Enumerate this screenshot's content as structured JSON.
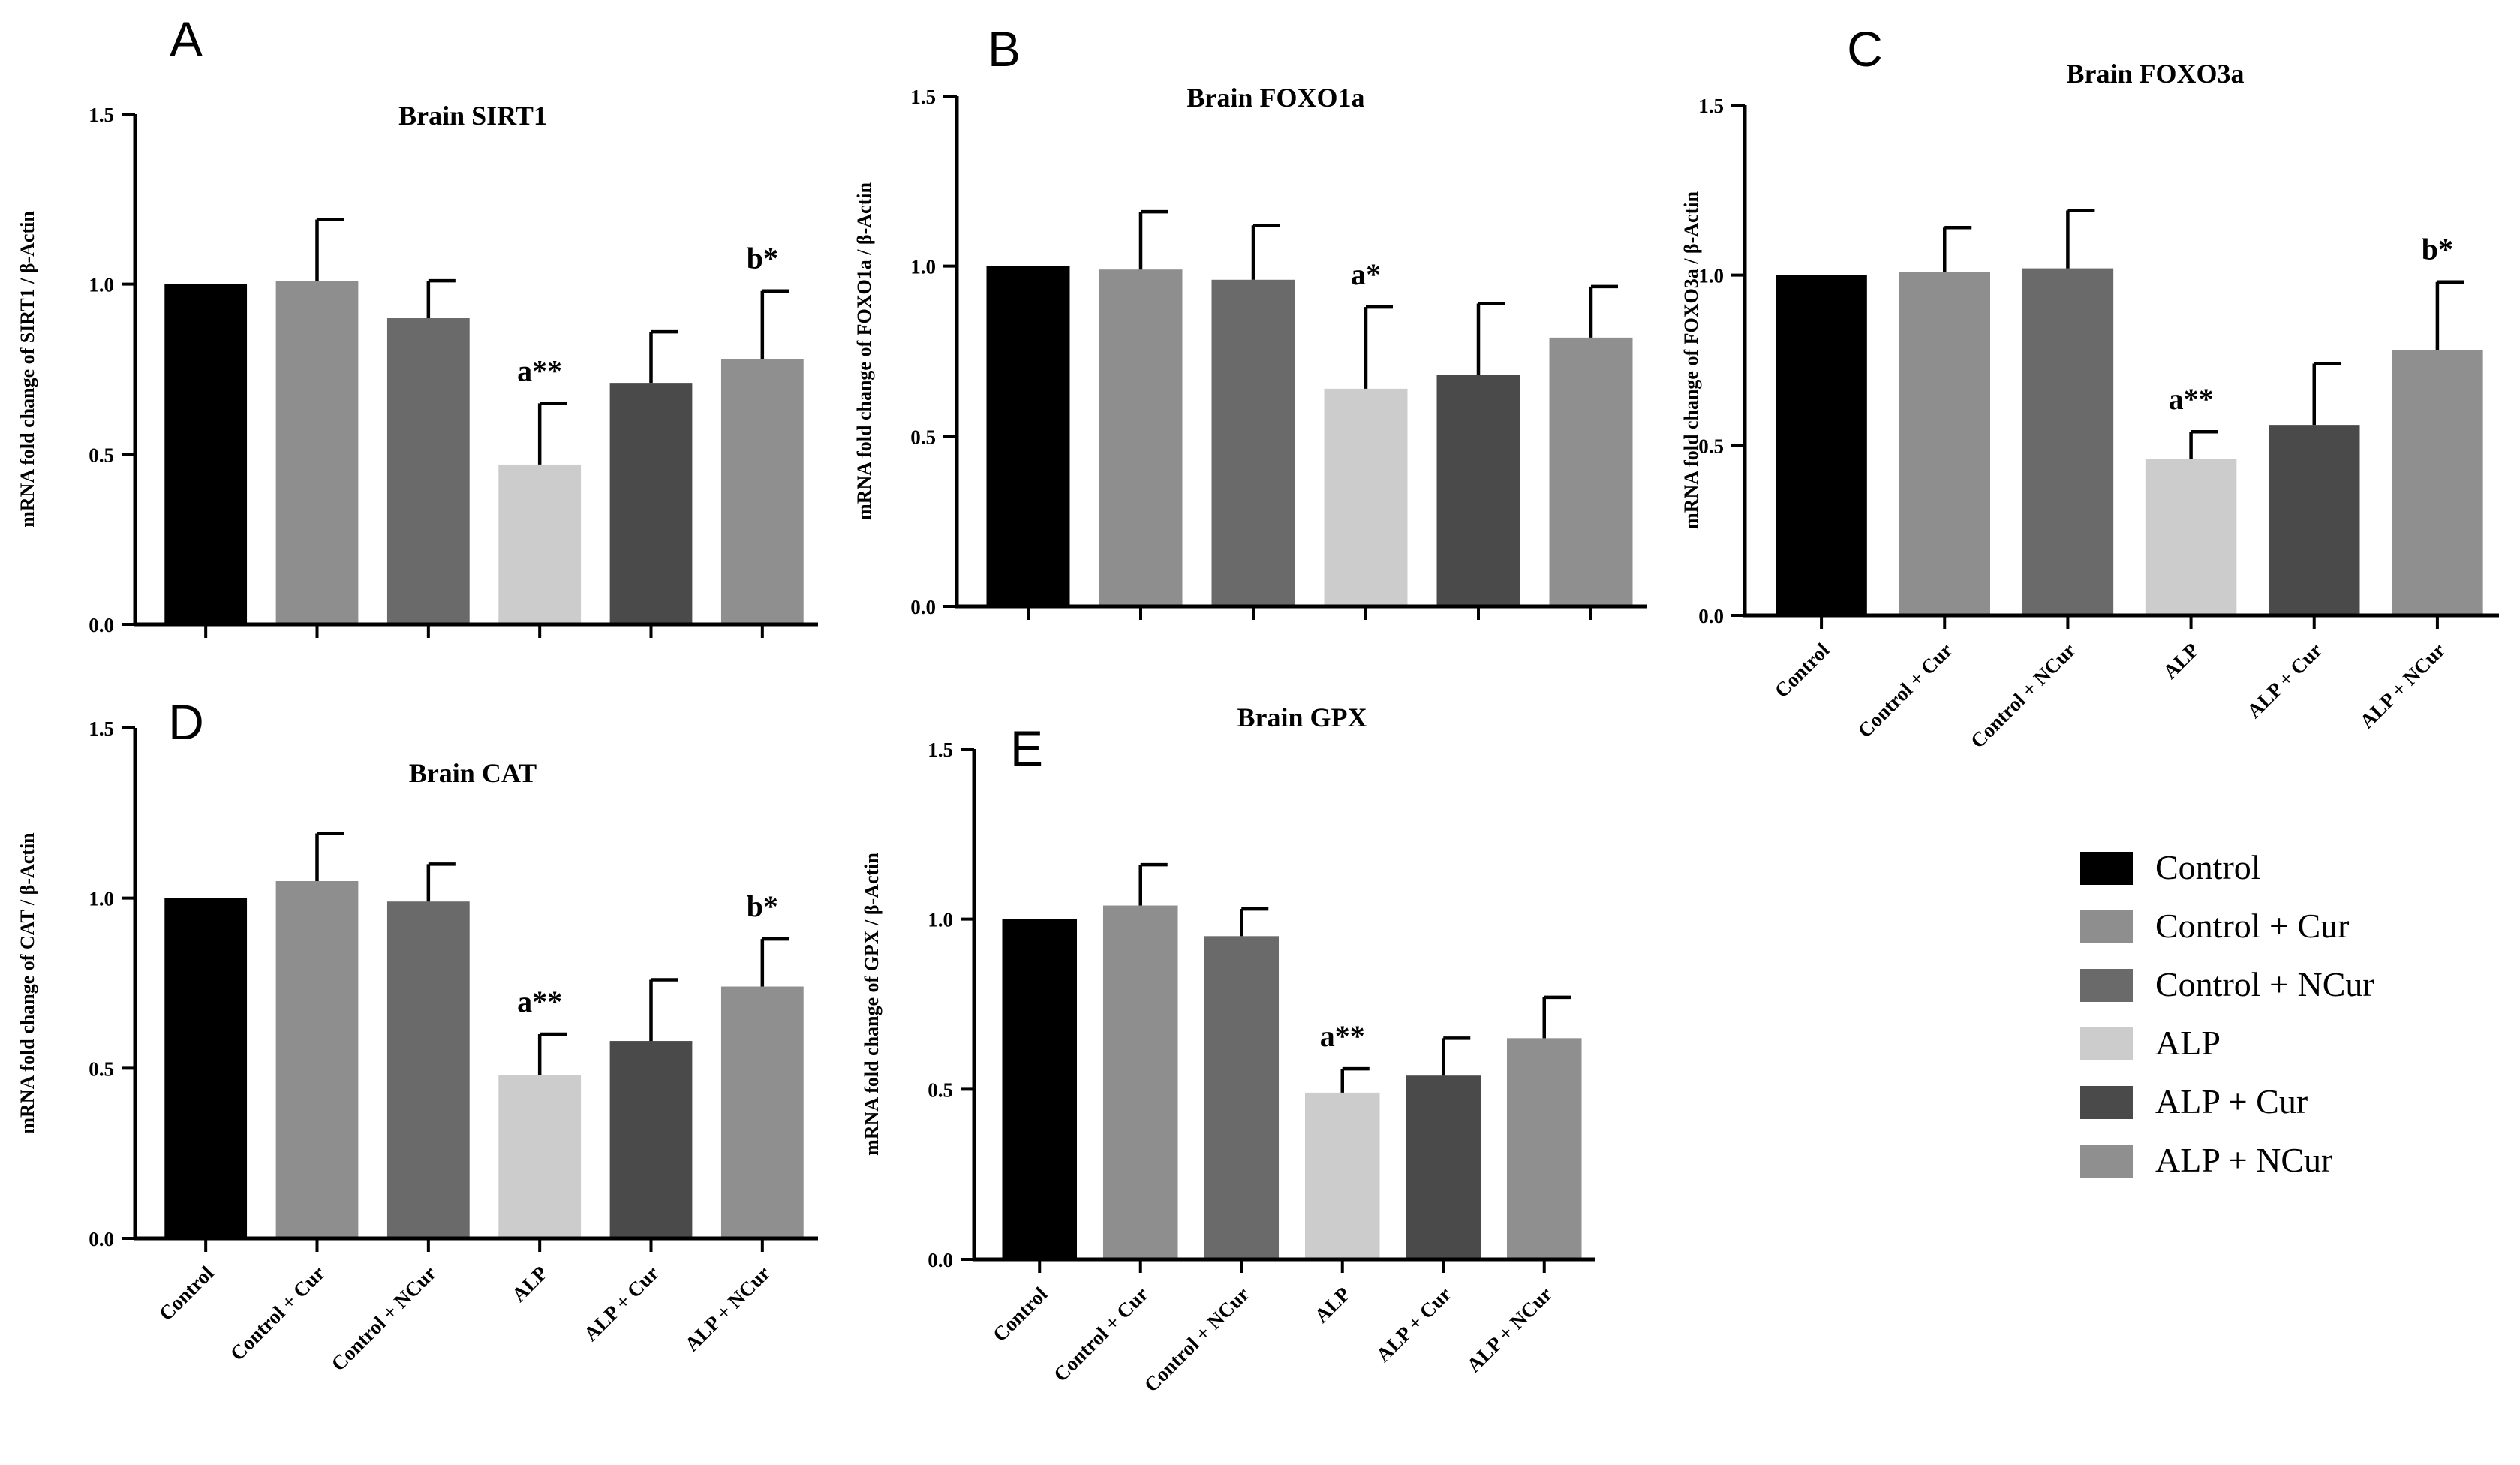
{
  "colors": {
    "Control": "#000000",
    "Control + Cur": "#8e8e8e",
    "Control + NCur": "#6a6a6a",
    "ALP": "#cccccc",
    "ALP + Cur": "#4a4a4a",
    "ALP + NCur": "#8f8f8f"
  },
  "legend": [
    "Control",
    "Control + Cur",
    "Control + NCur",
    "ALP",
    "ALP + Cur",
    "ALP + NCur"
  ],
  "chart_data": [
    {
      "panel": "A",
      "type": "bar",
      "title": "Brain SIRT1",
      "ylabel": "mRNA fold change of SIRT1 / β-Actin",
      "categories": [
        "Control",
        "Control + Cur",
        "Control + NCur",
        "ALP",
        "ALP + Cur",
        "ALP + NCur"
      ],
      "values": [
        1.0,
        1.01,
        0.9,
        0.47,
        0.71,
        0.78
      ],
      "errors": [
        0,
        0.18,
        0.11,
        0.18,
        0.15,
        0.2
      ],
      "annotations": [
        "",
        "",
        "",
        "a**",
        "",
        "b*"
      ],
      "yticks": [
        "0.0",
        "0.5",
        "1.0",
        "1.5"
      ],
      "ylim": [
        0,
        1.5
      ],
      "show_category_labels": false
    },
    {
      "panel": "B",
      "type": "bar",
      "title": "Brain FOXO1a",
      "ylabel": "mRNA fold change of FOXO1a / β-Actin",
      "categories": [
        "Control",
        "Control + Cur",
        "Control + NCur",
        "ALP",
        "ALP + Cur",
        "ALP + NCur"
      ],
      "values": [
        1.0,
        0.99,
        0.96,
        0.64,
        0.68,
        0.79
      ],
      "errors": [
        0,
        0.17,
        0.16,
        0.24,
        0.21,
        0.15
      ],
      "annotations": [
        "",
        "",
        "",
        "a*",
        "",
        ""
      ],
      "yticks": [
        "0.0",
        "0.5",
        "1.0",
        "1.5"
      ],
      "ylim": [
        0,
        1.5
      ],
      "show_category_labels": false
    },
    {
      "panel": "C",
      "type": "bar",
      "title": "Brain FOXO3a",
      "ylabel": "mRNA fold change of FOXO3a / β-Actin",
      "categories": [
        "Control",
        "Control + Cur",
        "Control + NCur",
        "ALP",
        "ALP + Cur",
        "ALP + NCur"
      ],
      "values": [
        1.0,
        1.01,
        1.02,
        0.46,
        0.56,
        0.78
      ],
      "errors": [
        0,
        0.13,
        0.17,
        0.08,
        0.18,
        0.2
      ],
      "annotations": [
        "",
        "",
        "",
        "a**",
        "",
        "b*"
      ],
      "yticks": [
        "0.0",
        "0.5",
        "1.0",
        "1.5"
      ],
      "ylim": [
        0,
        1.5
      ],
      "show_category_labels": true
    },
    {
      "panel": "D",
      "type": "bar",
      "title": "Brain CAT",
      "ylabel": "mRNA fold change of CAT / β-Actin",
      "categories": [
        "Control",
        "Control + Cur",
        "Control + NCur",
        "ALP",
        "ALP + Cur",
        "ALP + NCur"
      ],
      "values": [
        1.0,
        1.05,
        0.99,
        0.48,
        0.58,
        0.74
      ],
      "errors": [
        0,
        0.14,
        0.11,
        0.12,
        0.18,
        0.14
      ],
      "annotations": [
        "",
        "",
        "",
        "a**",
        "",
        "b*"
      ],
      "yticks": [
        "0.0",
        "0.5",
        "1.0",
        "1.5"
      ],
      "ylim": [
        0,
        1.5
      ],
      "show_category_labels": true
    },
    {
      "panel": "E",
      "type": "bar",
      "title": "Brain GPX",
      "ylabel": "mRNA fold change of GPX / β-Actin",
      "categories": [
        "Control",
        "Control + Cur",
        "Control + NCur",
        "ALP",
        "ALP + Cur",
        "ALP + NCur"
      ],
      "values": [
        1.0,
        1.04,
        0.95,
        0.49,
        0.54,
        0.65
      ],
      "errors": [
        0,
        0.12,
        0.08,
        0.07,
        0.11,
        0.12
      ],
      "annotations": [
        "",
        "",
        "",
        "a**",
        "",
        ""
      ],
      "yticks": [
        "0.0",
        "0.5",
        "1.0",
        "1.5"
      ],
      "ylim": [
        0,
        1.5
      ],
      "show_category_labels": true
    }
  ]
}
